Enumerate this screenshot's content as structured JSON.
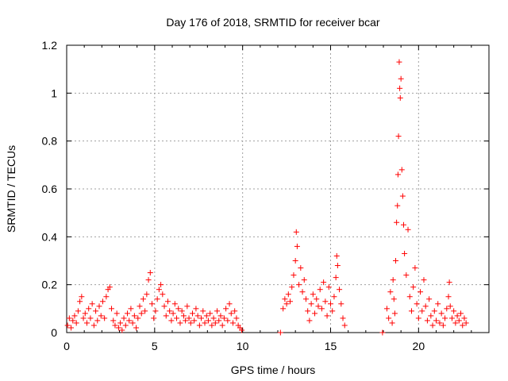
{
  "chart_data": {
    "type": "scatter",
    "title": "Day 176 of 2018, SRMTID for receiver bcar",
    "xlabel": "GPS time / hours",
    "ylabel": "SRMTID / TECUs",
    "xlim": [
      0,
      24
    ],
    "ylim": [
      0,
      1.2
    ],
    "xticks": [
      0,
      5,
      10,
      15,
      20
    ],
    "xtick_labels": [
      "0",
      "5",
      "10",
      "15",
      "20"
    ],
    "yticks": [
      0,
      0.2,
      0.4,
      0.6,
      0.8,
      1.0,
      1.2
    ],
    "ytick_labels": [
      "0",
      "0.2",
      "0.4",
      "0.6",
      "0.8",
      "1",
      "1.2"
    ],
    "grid": true,
    "marker": "+",
    "series": [
      {
        "name": "SRMTID",
        "color": "#ff0000",
        "points": [
          [
            0.05,
            0.03
          ],
          [
            0.15,
            0.06
          ],
          [
            0.25,
            0.02
          ],
          [
            0.35,
            0.05
          ],
          [
            0.45,
            0.07
          ],
          [
            0.55,
            0.04
          ],
          [
            0.65,
            0.09
          ],
          [
            0.75,
            0.13
          ],
          [
            0.85,
            0.15
          ],
          [
            0.95,
            0.06
          ],
          [
            1.05,
            0.08
          ],
          [
            1.15,
            0.04
          ],
          [
            1.25,
            0.1
          ],
          [
            1.35,
            0.06
          ],
          [
            1.45,
            0.12
          ],
          [
            1.55,
            0.03
          ],
          [
            1.65,
            0.09
          ],
          [
            1.75,
            0.05
          ],
          [
            1.85,
            0.11
          ],
          [
            1.95,
            0.07
          ],
          [
            2.05,
            0.13
          ],
          [
            2.15,
            0.06
          ],
          [
            2.25,
            0.15
          ],
          [
            2.35,
            0.18
          ],
          [
            2.45,
            0.19
          ],
          [
            2.55,
            0.1
          ],
          [
            2.65,
            0.05
          ],
          [
            2.75,
            0.03
          ],
          [
            2.85,
            0.08
          ],
          [
            2.95,
            0.02
          ],
          [
            3.05,
            0.04
          ],
          [
            3.15,
            0.01
          ],
          [
            3.25,
            0.06
          ],
          [
            3.35,
            0.03
          ],
          [
            3.45,
            0.08
          ],
          [
            3.55,
            0.05
          ],
          [
            3.65,
            0.1
          ],
          [
            3.75,
            0.04
          ],
          [
            3.85,
            0.07
          ],
          [
            3.95,
            0.02
          ],
          [
            4.05,
            0.06
          ],
          [
            4.15,
            0.11
          ],
          [
            4.25,
            0.08
          ],
          [
            4.35,
            0.14
          ],
          [
            4.45,
            0.09
          ],
          [
            4.55,
            0.16
          ],
          [
            4.65,
            0.22
          ],
          [
            4.75,
            0.25
          ],
          [
            4.85,
            0.12
          ],
          [
            4.95,
            0.06
          ],
          [
            5.05,
            0.09
          ],
          [
            5.15,
            0.14
          ],
          [
            5.25,
            0.18
          ],
          [
            5.35,
            0.2
          ],
          [
            5.45,
            0.16
          ],
          [
            5.55,
            0.11
          ],
          [
            5.65,
            0.07
          ],
          [
            5.75,
            0.13
          ],
          [
            5.85,
            0.09
          ],
          [
            5.95,
            0.05
          ],
          [
            6.05,
            0.08
          ],
          [
            6.15,
            0.12
          ],
          [
            6.25,
            0.06
          ],
          [
            6.35,
            0.1
          ],
          [
            6.45,
            0.04
          ],
          [
            6.55,
            0.09
          ],
          [
            6.65,
            0.07
          ],
          [
            6.75,
            0.05
          ],
          [
            6.85,
            0.11
          ],
          [
            6.95,
            0.06
          ],
          [
            7.05,
            0.04
          ],
          [
            7.15,
            0.08
          ],
          [
            7.25,
            0.05
          ],
          [
            7.35,
            0.1
          ],
          [
            7.45,
            0.07
          ],
          [
            7.55,
            0.03
          ],
          [
            7.65,
            0.06
          ],
          [
            7.75,
            0.09
          ],
          [
            7.85,
            0.04
          ],
          [
            7.95,
            0.07
          ],
          [
            8.05,
            0.05
          ],
          [
            8.15,
            0.08
          ],
          [
            8.25,
            0.03
          ],
          [
            8.35,
            0.06
          ],
          [
            8.45,
            0.04
          ],
          [
            8.55,
            0.09
          ],
          [
            8.65,
            0.05
          ],
          [
            8.75,
            0.07
          ],
          [
            8.85,
            0.03
          ],
          [
            8.95,
            0.06
          ],
          [
            9.05,
            0.1
          ],
          [
            9.15,
            0.05
          ],
          [
            9.25,
            0.12
          ],
          [
            9.35,
            0.08
          ],
          [
            9.45,
            0.04
          ],
          [
            9.55,
            0.09
          ],
          [
            9.65,
            0.06
          ],
          [
            9.75,
            0.03
          ],
          [
            9.85,
            0.02
          ],
          [
            9.95,
            0.01
          ],
          [
            12.15,
            0.0
          ],
          [
            12.3,
            0.1
          ],
          [
            12.4,
            0.14
          ],
          [
            12.5,
            0.12
          ],
          [
            12.6,
            0.16
          ],
          [
            12.7,
            0.13
          ],
          [
            12.8,
            0.19
          ],
          [
            12.9,
            0.24
          ],
          [
            13.0,
            0.3
          ],
          [
            13.05,
            0.42
          ],
          [
            13.1,
            0.36
          ],
          [
            13.2,
            0.2
          ],
          [
            13.3,
            0.27
          ],
          [
            13.4,
            0.17
          ],
          [
            13.5,
            0.22
          ],
          [
            13.6,
            0.14
          ],
          [
            13.7,
            0.09
          ],
          [
            13.8,
            0.05
          ],
          [
            13.9,
            0.12
          ],
          [
            14.0,
            0.16
          ],
          [
            14.1,
            0.08
          ],
          [
            14.2,
            0.14
          ],
          [
            14.3,
            0.11
          ],
          [
            14.4,
            0.18
          ],
          [
            14.5,
            0.1
          ],
          [
            14.6,
            0.21
          ],
          [
            14.7,
            0.13
          ],
          [
            14.8,
            0.07
          ],
          [
            14.9,
            0.19
          ],
          [
            15.0,
            0.12
          ],
          [
            15.1,
            0.09
          ],
          [
            15.2,
            0.15
          ],
          [
            15.3,
            0.23
          ],
          [
            15.35,
            0.32
          ],
          [
            15.4,
            0.28
          ],
          [
            15.5,
            0.18
          ],
          [
            15.6,
            0.12
          ],
          [
            15.7,
            0.06
          ],
          [
            15.8,
            0.03
          ],
          [
            17.95,
            0.0
          ],
          [
            18.2,
            0.1
          ],
          [
            18.3,
            0.06
          ],
          [
            18.4,
            0.17
          ],
          [
            18.5,
            0.04
          ],
          [
            18.55,
            0.22
          ],
          [
            18.6,
            0.14
          ],
          [
            18.65,
            0.08
          ],
          [
            18.7,
            0.3
          ],
          [
            18.75,
            0.46
          ],
          [
            18.8,
            0.53
          ],
          [
            18.83,
            0.66
          ],
          [
            18.86,
            0.82
          ],
          [
            18.9,
            1.13
          ],
          [
            18.93,
            1.02
          ],
          [
            18.96,
            0.98
          ],
          [
            19.0,
            1.06
          ],
          [
            19.05,
            0.68
          ],
          [
            19.1,
            0.57
          ],
          [
            19.15,
            0.45
          ],
          [
            19.2,
            0.33
          ],
          [
            19.3,
            0.24
          ],
          [
            19.4,
            0.43
          ],
          [
            19.5,
            0.15
          ],
          [
            19.6,
            0.09
          ],
          [
            19.7,
            0.19
          ],
          [
            19.8,
            0.27
          ],
          [
            19.9,
            0.12
          ],
          [
            20.0,
            0.06
          ],
          [
            20.1,
            0.17
          ],
          [
            20.2,
            0.09
          ],
          [
            20.3,
            0.22
          ],
          [
            20.4,
            0.11
          ],
          [
            20.5,
            0.05
          ],
          [
            20.6,
            0.14
          ],
          [
            20.7,
            0.07
          ],
          [
            20.8,
            0.03
          ],
          [
            20.9,
            0.09
          ],
          [
            21.0,
            0.05
          ],
          [
            21.1,
            0.12
          ],
          [
            21.2,
            0.04
          ],
          [
            21.3,
            0.08
          ],
          [
            21.4,
            0.03
          ],
          [
            21.5,
            0.06
          ],
          [
            21.6,
            0.1
          ],
          [
            21.7,
            0.15
          ],
          [
            21.75,
            0.21
          ],
          [
            21.8,
            0.11
          ],
          [
            21.9,
            0.06
          ],
          [
            22.0,
            0.09
          ],
          [
            22.1,
            0.04
          ],
          [
            22.2,
            0.07
          ],
          [
            22.3,
            0.05
          ],
          [
            22.4,
            0.08
          ],
          [
            22.5,
            0.03
          ],
          [
            22.6,
            0.06
          ],
          [
            22.7,
            0.04
          ]
        ]
      }
    ]
  }
}
